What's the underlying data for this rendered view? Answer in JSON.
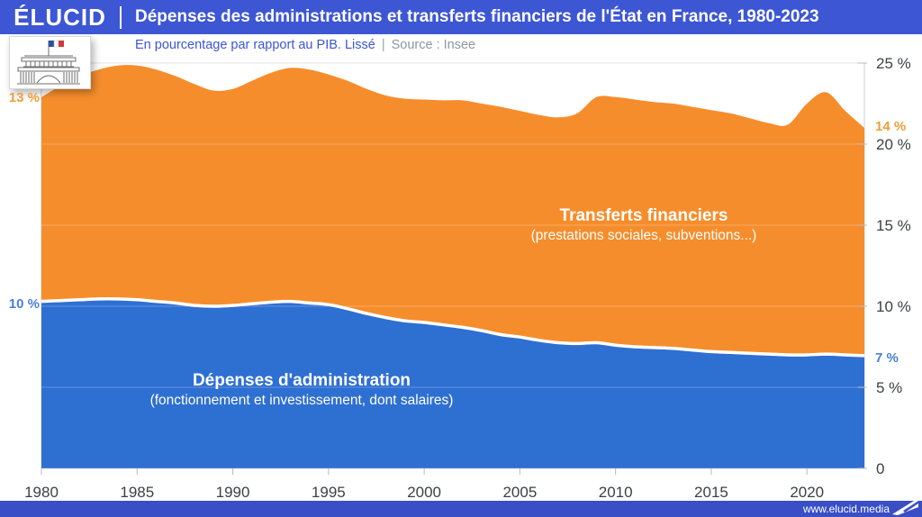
{
  "header": {
    "brand": "ÉLUCID",
    "title": "Dépenses des administrations et transferts financiers de l'État en France, 1980-2023",
    "subtitle": "En pourcentage par rapport au PIB. Lissé",
    "separator": "|",
    "source": "Source : Insee"
  },
  "series_labels": {
    "transfers_title": "Transferts financiers",
    "transfers_sub": "(prestations sociales, subventions...)",
    "admin_title": "Dépenses d'administration",
    "admin_sub": "(fonctionnement et investissement, dont salaires)"
  },
  "endpoint_labels": {
    "left_transfers": "13 %",
    "left_admin": "10 %",
    "right_transfers": "14 %",
    "right_admin": "7 %"
  },
  "footer": {
    "url": "www.elucid.media"
  },
  "colors": {
    "header_blue": "#3d56d4",
    "footer_blue": "#3a4ec6",
    "area_blue": "#2e6fd2",
    "area_orange": "#f68d2c",
    "label_orange": "#ef9d3a",
    "label_blue": "#4a7fd8",
    "axis_text": "#3d4043",
    "tick_line": "#b8b8b8",
    "grid_line": "#dcdcdc",
    "frame_line": "#cfcfcf",
    "boundary_white": "#ffffff"
  },
  "chart_data": {
    "type": "area",
    "stacked": true,
    "title": "Dépenses des administrations et transferts financiers de l'État en France, 1980-2023",
    "subtitle": "En pourcentage par rapport au PIB. Lissé — Source : Insee",
    "xlabel": "",
    "ylabel": "% du PIB",
    "ylim": [
      0,
      25
    ],
    "grid": true,
    "legend_position": "in-plot",
    "x": [
      1980,
      1981,
      1982,
      1983,
      1984,
      1985,
      1986,
      1987,
      1988,
      1989,
      1990,
      1991,
      1992,
      1993,
      1994,
      1995,
      1996,
      1997,
      1998,
      1999,
      2000,
      2001,
      2002,
      2003,
      2004,
      2005,
      2006,
      2007,
      2008,
      2009,
      2010,
      2011,
      2012,
      2013,
      2014,
      2015,
      2016,
      2017,
      2018,
      2019,
      2020,
      2021,
      2022,
      2023
    ],
    "series": [
      {
        "name": "Dépenses d'administration (fonctionnement et investissement, dont salaires)",
        "color": "#2e6fd2",
        "values": [
          10.3,
          10.35,
          10.4,
          10.45,
          10.45,
          10.4,
          10.3,
          10.2,
          10.05,
          10.0,
          10.05,
          10.15,
          10.25,
          10.3,
          10.2,
          10.1,
          9.85,
          9.55,
          9.3,
          9.1,
          9.0,
          8.85,
          8.7,
          8.5,
          8.25,
          8.1,
          7.9,
          7.75,
          7.7,
          7.75,
          7.6,
          7.5,
          7.45,
          7.4,
          7.3,
          7.2,
          7.15,
          7.1,
          7.05,
          7.0,
          7.0,
          7.05,
          7.0,
          6.95
        ]
      },
      {
        "name": "Transferts financiers (prestations sociales, subventions...)",
        "color": "#f68d2c",
        "values": [
          12.6,
          13.25,
          13.8,
          14.15,
          14.4,
          14.45,
          14.3,
          14.0,
          13.65,
          13.3,
          13.35,
          13.75,
          14.15,
          14.4,
          14.4,
          14.2,
          14.05,
          13.85,
          13.7,
          13.7,
          13.75,
          13.85,
          14.0,
          14.0,
          14.05,
          13.95,
          13.9,
          13.9,
          14.2,
          15.15,
          15.3,
          15.25,
          15.15,
          15.1,
          15.0,
          14.9,
          14.75,
          14.5,
          14.25,
          14.2,
          15.5,
          16.15,
          15.05,
          14.05
        ]
      }
    ],
    "y_ticks": [
      0,
      5,
      10,
      15,
      20,
      25
    ],
    "y_tick_labels": [
      "0",
      "5 %",
      "10 %",
      "15 %",
      "20 %",
      "25 %"
    ],
    "x_ticks": [
      1980,
      1985,
      1990,
      1995,
      2000,
      2005,
      2010,
      2015,
      2020
    ]
  }
}
